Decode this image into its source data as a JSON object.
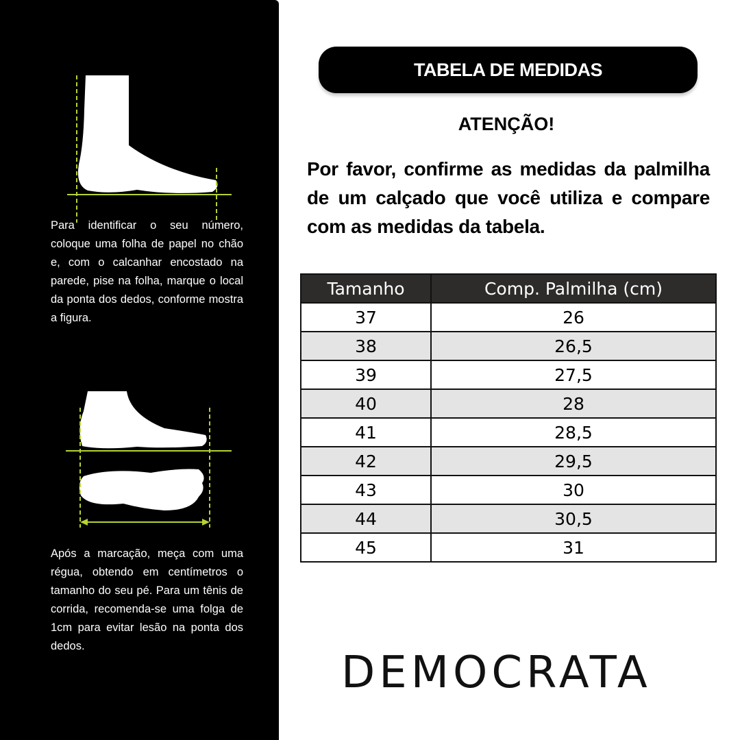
{
  "left_panel": {
    "instruction_1": "Para identificar o seu número, coloque uma folha de papel no chão e, com o calcanhar encostado na parede, pise na folha, marque o local da ponta dos dedos, conforme mostra a figura.",
    "instruction_2": "Após a marcação, meça com uma régua, obtendo em centímetros o tamanho do seu pé. Para um tênis de corrida, recomenda-se uma folga de 1cm para evitar lesão na ponta dos dedos.",
    "guide_color": "#b5d334"
  },
  "header": {
    "title": "TABELA DE MEDIDAS",
    "attention": "ATENÇÃO!"
  },
  "intro": "Por favor, confirme as medidas da palmilha de um calçado que você utiliza e compare com as medidas da tabela.",
  "table": {
    "columns": [
      "Tamanho",
      "Comp. Palmilha (cm)"
    ],
    "rows": [
      [
        "37",
        "26"
      ],
      [
        "38",
        "26,5"
      ],
      [
        "39",
        "27,5"
      ],
      [
        "40",
        "28"
      ],
      [
        "41",
        "28,5"
      ],
      [
        "42",
        "29,5"
      ],
      [
        "43",
        "30"
      ],
      [
        "44",
        "30,5"
      ],
      [
        "45",
        "31"
      ]
    ]
  },
  "brand": "DEMOCRATA"
}
